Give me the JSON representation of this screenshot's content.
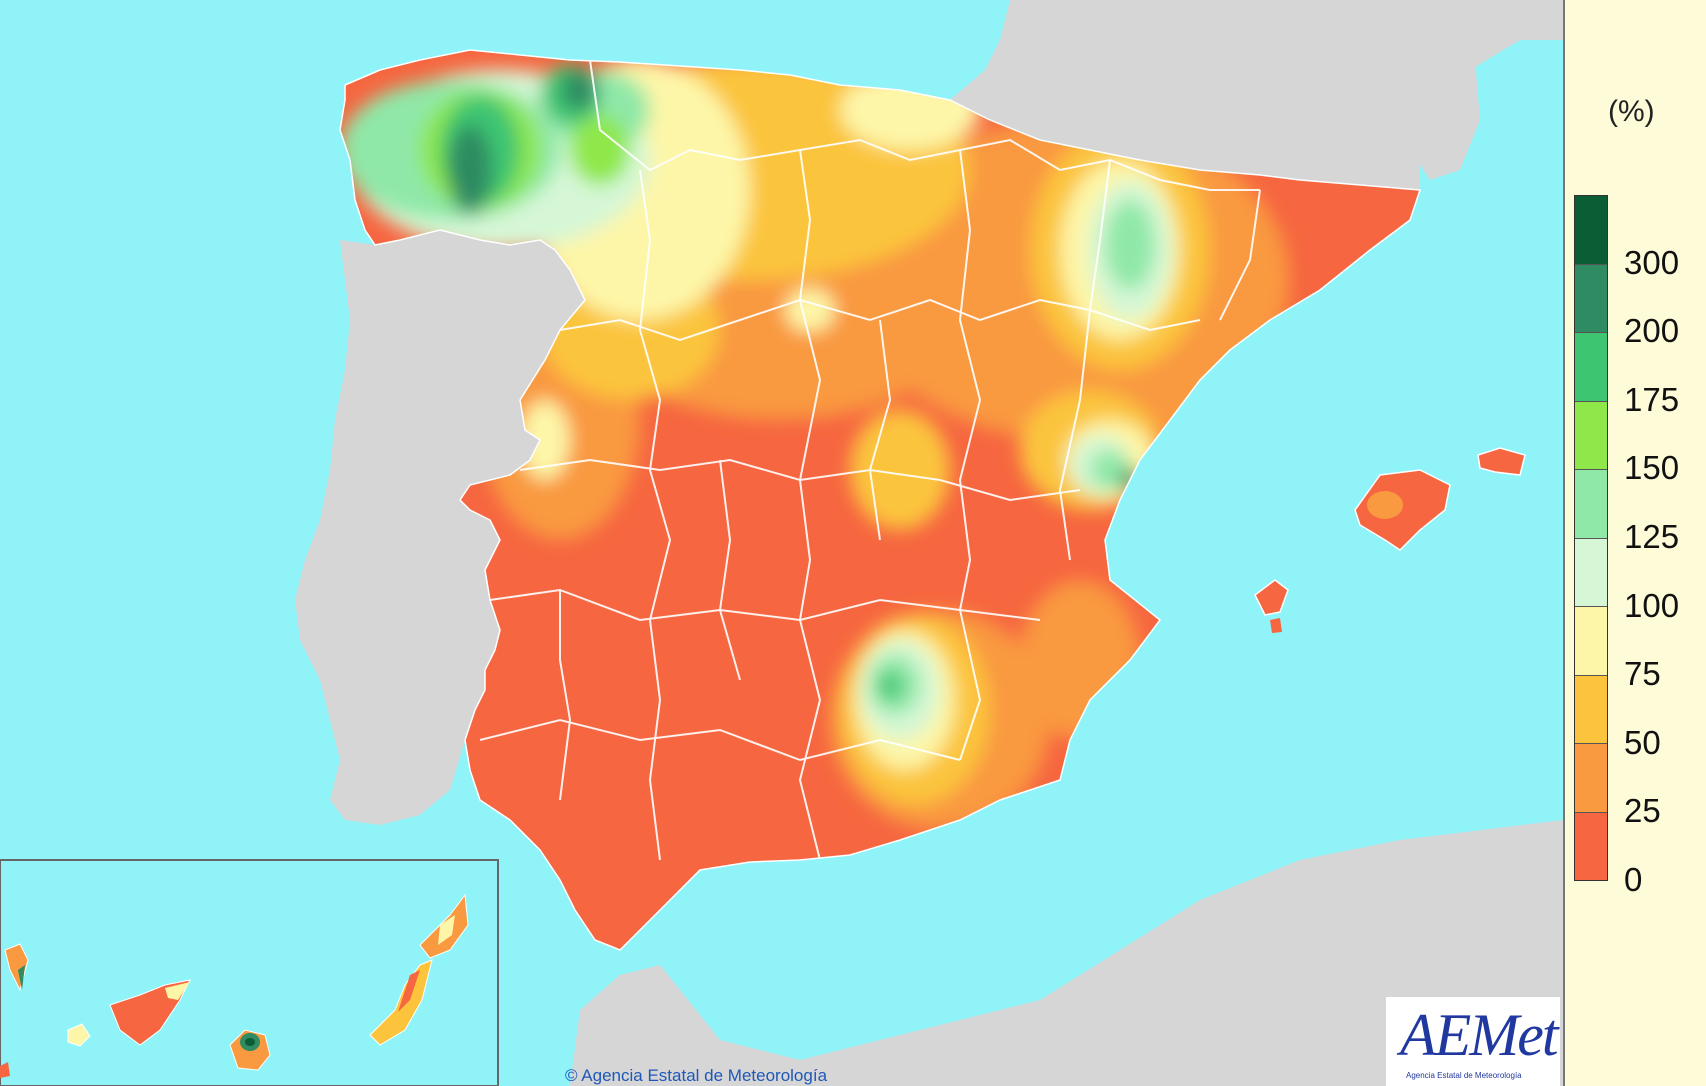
{
  "legend": {
    "unit": "(%)",
    "labels": [
      "300",
      "200",
      "175",
      "150",
      "125",
      "100",
      "75",
      "50",
      "25",
      "0"
    ],
    "colors": [
      "#0b5d36",
      "#2e8b62",
      "#3ec572",
      "#8fe84a",
      "#8fe8a8",
      "#d6f7d6",
      "#fdf6a8",
      "#fbc43c",
      "#f99940",
      "#f66640"
    ]
  },
  "copyright": "© Agencia Estatal de Meteorología",
  "logo": {
    "text": "AEMet",
    "subtitle": "Agencia Estatal de Meteorología"
  },
  "colors": {
    "sea": "#8ff3f8",
    "land": "#d6d6d6",
    "borders": "#ffffff"
  }
}
